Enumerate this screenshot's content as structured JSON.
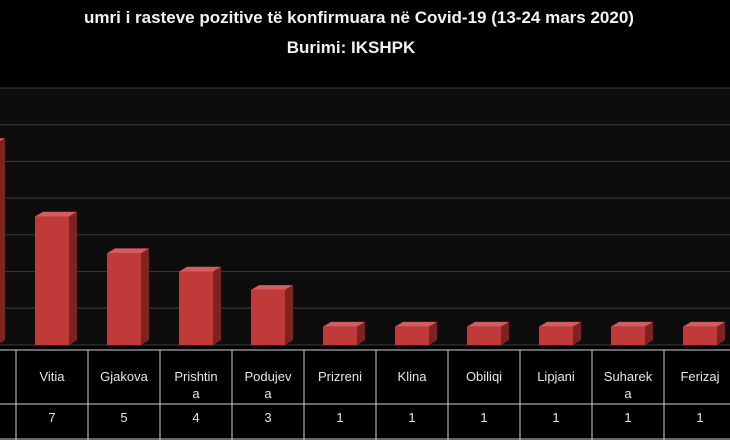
{
  "chart_data": {
    "type": "bar",
    "title": "umri i rasteve pozitive të konfirmuara  në Covid-19 (13-24 mars 2020)",
    "subtitle": "Burimi: IKSHPK",
    "categories": [
      "",
      "Vitia",
      "Gjakova",
      "Prishtina",
      "Podujeva",
      "Prizreni",
      "Klina",
      "Obiliqi",
      "Lipjani",
      "Suhareka",
      "Ferizaj"
    ],
    "category_display": [
      [
        ""
      ],
      [
        "Vitia"
      ],
      [
        "Gjakova"
      ],
      [
        "Prishtin",
        "a"
      ],
      [
        "Podujev",
        "a"
      ],
      [
        "Prizreni"
      ],
      [
        "Klina"
      ],
      [
        "Obiliqi"
      ],
      [
        "Lipjani"
      ],
      [
        "Suharek",
        "a"
      ],
      [
        "Ferizaj"
      ]
    ],
    "value_labels": [
      "",
      "7",
      "5",
      "4",
      "3",
      "1",
      "1",
      "1",
      "1",
      "1",
      "1"
    ],
    "values": [
      11,
      7,
      5,
      4,
      3,
      1,
      1,
      1,
      1,
      1,
      1
    ],
    "ylim": [
      0,
      14
    ],
    "grid": true,
    "colors": {
      "bar_front": "#c03a3a",
      "bar_side": "#7e2222",
      "bar_top": "#d55c5c",
      "background": "#000000",
      "plot_background": "#0d0d0d",
      "grid": "#3c3c3c",
      "text": "#e6e6e6"
    }
  }
}
